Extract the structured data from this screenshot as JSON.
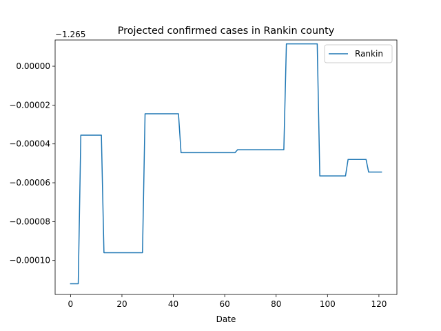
{
  "chart_data": {
    "type": "line",
    "title": "Projected confirmed cases in Rankin county",
    "xlabel": "Date",
    "ylabel": "",
    "y_offset_text": "−1.265",
    "xlim": [
      -6,
      127
    ],
    "ylim": [
      -0.0001175,
      1.35e-05
    ],
    "xticks": [
      0,
      20,
      40,
      60,
      80,
      100,
      120
    ],
    "xtick_labels": [
      "0",
      "20",
      "40",
      "60",
      "80",
      "100",
      "120"
    ],
    "yticks": [
      0.0,
      -2e-05,
      -4e-05,
      -6e-05,
      -8e-05,
      -0.0001
    ],
    "ytick_labels": [
      "0.00000",
      "−0.00002",
      "−0.00004",
      "−0.00006",
      "−0.00008",
      "−0.00010"
    ],
    "grid": false,
    "legend_position": "top-right",
    "series": [
      {
        "name": "Rankin",
        "color": "#1f77b4",
        "x": [
          0,
          3,
          4,
          12,
          13,
          28,
          29,
          42,
          43,
          64,
          65,
          83,
          84,
          96,
          97,
          107,
          108,
          115,
          116,
          121
        ],
        "y": [
          -0.000112,
          -0.000112,
          -3.55e-05,
          -3.55e-05,
          -9.6e-05,
          -9.6e-05,
          -2.45e-05,
          -2.45e-05,
          -4.45e-05,
          -4.45e-05,
          -4.3e-05,
          -4.3e-05,
          1.15e-05,
          1.15e-05,
          -5.65e-05,
          -5.65e-05,
          -4.8e-05,
          -4.8e-05,
          -5.45e-05,
          -5.45e-05
        ]
      }
    ]
  }
}
